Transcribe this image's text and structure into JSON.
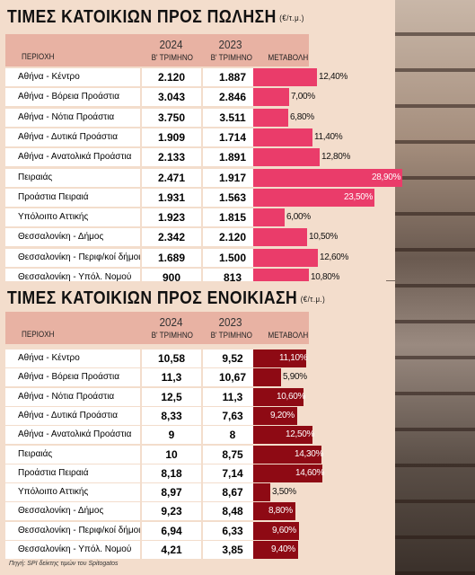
{
  "sale": {
    "title": "ΤΙΜΕΣ ΚΑΤΟΙΚΙΩΝ ΠΡΟΣ ΠΩΛΗΣΗ",
    "unit": "(€/τ.μ.)",
    "headers": {
      "region": "ΠΕΡΙΟΧΗ",
      "y2024": "2024",
      "y2024_sub": "Β' ΤΡΙΜΗΝΟ",
      "y2023": "2023",
      "y2023_sub": "Β' ΤΡΙΜΗΝΟ",
      "change": "ΜΕΤΑΒΟΛΗ"
    },
    "bar_color": "#ea3c6a",
    "rows": [
      {
        "name": "Αθήνα - Κέντρο",
        "v2024": "2.120",
        "v2023": "1.887",
        "change": "12,40%",
        "pct": 12.4
      },
      {
        "name": "Αθήνα - Βόρεια Προάστια",
        "v2024": "3.043",
        "v2023": "2.846",
        "change": "7,00%",
        "pct": 7.0
      },
      {
        "name": "Αθήνα - Νότια Προάστια",
        "v2024": "3.750",
        "v2023": "3.511",
        "change": "6,80%",
        "pct": 6.8
      },
      {
        "name": "Αθήνα - Δυτικά Προάστια",
        "v2024": "1.909",
        "v2023": "1.714",
        "change": "11,40%",
        "pct": 11.4
      },
      {
        "name": "Αθήνα - Ανατολικά Προάστια",
        "v2024": "2.133",
        "v2023": "1.891",
        "change": "12,80%",
        "pct": 12.8
      },
      {
        "name": "Πειραιάς",
        "v2024": "2.471",
        "v2023": "1.917",
        "change": "28,90%",
        "pct": 28.9
      },
      {
        "name": "Προάστια Πειραιά",
        "v2024": "1.931",
        "v2023": "1.563",
        "change": "23,50%",
        "pct": 23.5
      },
      {
        "name": "Υπόλοιπο Αττικής",
        "v2024": "1.923",
        "v2023": "1.815",
        "change": "6,00%",
        "pct": 6.0
      },
      {
        "name": "Θεσσαλονίκη - Δήμος",
        "v2024": "2.342",
        "v2023": "2.120",
        "change": "10,50%",
        "pct": 10.5
      },
      {
        "name": "Θεσσαλονίκη - Περιφ/κοί δήμοι",
        "v2024": "1.689",
        "v2023": "1.500",
        "change": "12,60%",
        "pct": 12.6
      },
      {
        "name": "Θεσσαλονίκη - Υπόλ. Νομού",
        "v2024": "900",
        "v2023": "813",
        "change": "10,80%",
        "pct": 10.8
      }
    ]
  },
  "rent": {
    "title": "ΤΙΜΕΣ ΚΑΤΟΙΚΙΩΝ ΠΡΟΣ ΕΝΟΙΚΙΑΣΗ",
    "unit": "(€/τ.μ.)",
    "headers": {
      "region": "ΠΕΡΙΟΧΗ",
      "y2024": "2024",
      "y2024_sub": "Β' ΤΡΙΜΗΝΟ",
      "y2023": "2023",
      "y2023_sub": "Β' ΤΡΙΜΗΝΟ",
      "change": "ΜΕΤΑΒΟΛΗ"
    },
    "bar_color": "#8e0a14",
    "rows": [
      {
        "name": "Αθήνα - Κέντρο",
        "v2024": "10,58",
        "v2023": "9,52",
        "change": "11,10%",
        "pct": 11.1
      },
      {
        "name": "Αθήνα - Βόρεια Προάστια",
        "v2024": "11,3",
        "v2023": "10,67",
        "change": "5,90%",
        "pct": 5.9
      },
      {
        "name": "Αθήνα - Νότια Προάστια",
        "v2024": "12,5",
        "v2023": "11,3",
        "change": "10,60%",
        "pct": 10.6
      },
      {
        "name": "Αθήνα - Δυτικά Προάστια",
        "v2024": "8,33",
        "v2023": "7,63",
        "change": "9,20%",
        "pct": 9.2
      },
      {
        "name": "Αθήνα - Ανατολικά Προάστια",
        "v2024": "9",
        "v2023": "8",
        "change": "12,50%",
        "pct": 12.5
      },
      {
        "name": "Πειραιάς",
        "v2024": "10",
        "v2023": "8,75",
        "change": "14,30%",
        "pct": 14.3
      },
      {
        "name": "Προάστια Πειραιά",
        "v2024": "8,18",
        "v2023": "7,14",
        "change": "14,60%",
        "pct": 14.6
      },
      {
        "name": "Υπόλοιπο Αττικής",
        "v2024": "8,97",
        "v2023": "8,67",
        "change": "3,50%",
        "pct": 3.5
      },
      {
        "name": "Θεσσαλονίκη - Δήμος",
        "v2024": "9,23",
        "v2023": "8,48",
        "change": "8,80%",
        "pct": 8.8
      },
      {
        "name": "Θεσσαλονίκη - Περιφ/κοί δήμοι",
        "v2024": "6,94",
        "v2023": "6,33",
        "change": "9,60%",
        "pct": 9.6
      },
      {
        "name": "Θεσσαλονίκη - Υπόλ. Νομού",
        "v2024": "4,21",
        "v2023": "3,85",
        "change": "9,40%",
        "pct": 9.4
      }
    ]
  },
  "source": "Πηγή: SPI δείκτης τιμών του Spitogatos",
  "chart_data": [
    {
      "type": "bar",
      "title": "ΤΙΜΕΣ ΚΑΤΟΙΚΙΩΝ ΠΡΟΣ ΠΩΛΗΣΗ",
      "categories": [
        "Αθήνα - Κέντρο",
        "Αθήνα - Βόρεια Προάστια",
        "Αθήνα - Νότια Προάστια",
        "Αθήνα - Δυτικά Προάστια",
        "Αθήνα - Ανατολικά Προάστια",
        "Πειραιάς",
        "Προάστια Πειραιά",
        "Υπόλοιπο Αττικής",
        "Θεσσαλονίκη - Δήμος",
        "Θεσσαλονίκη - Περιφ/κοί δήμοι",
        "Θεσσαλονίκη - Υπόλ. Νομού"
      ],
      "series": [
        {
          "name": "2024",
          "values": [
            2120,
            3043,
            3750,
            1909,
            2133,
            2471,
            1931,
            1923,
            2342,
            1689,
            900
          ]
        },
        {
          "name": "2023",
          "values": [
            1887,
            2846,
            3511,
            1714,
            1891,
            1917,
            1563,
            1815,
            2120,
            1500,
            813
          ]
        },
        {
          "name": "ΜΕΤΑΒΟΛΗ",
          "values": [
            12.4,
            7.0,
            6.8,
            11.4,
            12.8,
            28.9,
            23.5,
            6.0,
            10.5,
            12.6,
            10.8
          ]
        }
      ]
    },
    {
      "type": "bar",
      "title": "ΤΙΜΕΣ ΚΑΤΟΙΚΙΩΝ ΠΡΟΣ ΕΝΟΙΚΙΑΣΗ",
      "categories": [
        "Αθήνα - Κέντρο",
        "Αθήνα - Βόρεια Προάστια",
        "Αθήνα - Νότια Προάστια",
        "Αθήνα - Δυτικά Προάστια",
        "Αθήνα - Ανατολικά Προάστια",
        "Πειραιάς",
        "Προάστια Πειραιά",
        "Υπόλοιπο Αττικής",
        "Θεσσαλονίκη - Δήμος",
        "Θεσσαλονίκη - Περιφ/κοί δήμοι",
        "Θεσσαλονίκη - Υπόλ. Νομού"
      ],
      "series": [
        {
          "name": "2024",
          "values": [
            10.58,
            11.3,
            12.5,
            8.33,
            9,
            10,
            8.18,
            8.97,
            9.23,
            6.94,
            4.21
          ]
        },
        {
          "name": "2023",
          "values": [
            9.52,
            10.67,
            11.3,
            7.63,
            8,
            8.75,
            7.14,
            8.67,
            8.48,
            6.33,
            3.85
          ]
        },
        {
          "name": "ΜΕΤΑΒΟΛΗ",
          "values": [
            11.1,
            5.9,
            10.6,
            9.2,
            12.5,
            14.3,
            14.6,
            3.5,
            8.8,
            9.6,
            9.4
          ]
        }
      ]
    }
  ]
}
